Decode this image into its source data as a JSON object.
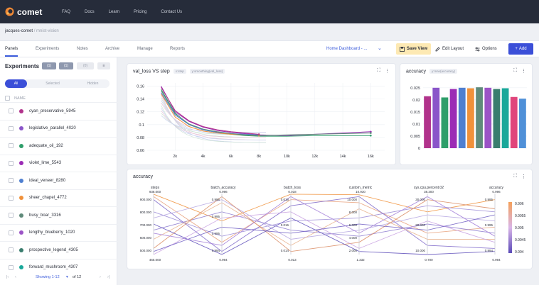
{
  "app": {
    "logo_text": "comet"
  },
  "topnav": {
    "links": [
      "FAQ",
      "Docs",
      "Learn",
      "Pricing",
      "Contact Us"
    ]
  },
  "breadcrumb": {
    "workspace": "jacques-comet",
    "separator": "/",
    "project": "mnist-vision"
  },
  "tabs": [
    "Panels",
    "Experiments",
    "Notes",
    "Archive",
    "Manage",
    "Reports"
  ],
  "toolbar": {
    "dashboard_select": "Home Dashboard - ...",
    "save_view": "Save View",
    "edit_layout": "Edit Layout",
    "options": "Options",
    "add": "Add"
  },
  "sidebar": {
    "title": "Experiments",
    "buttons": [
      "(1)",
      "(1)",
      "(0)",
      "≡"
    ],
    "filters": [
      "All",
      "Selected",
      "Hidden"
    ],
    "column_name": "NAME",
    "experiments": [
      {
        "name": "cyan_preservative_5945",
        "color": "#b1328b"
      },
      {
        "name": "legislative_parallel_4020",
        "color": "#8a55c9"
      },
      {
        "name": "adequate_oil_192",
        "color": "#2e9e6a"
      },
      {
        "name": "violet_lime_5543",
        "color": "#9b2bb5"
      },
      {
        "name": "ideal_veneer_8280",
        "color": "#4f7fd0"
      },
      {
        "name": "sheer_chapel_4772",
        "color": "#f0913a"
      },
      {
        "name": "busy_boar_3316",
        "color": "#5f8a7a"
      },
      {
        "name": "lengthy_blueberry_1020",
        "color": "#9b53c6"
      },
      {
        "name": "prospective_legend_4305",
        "color": "#3a7d6e"
      },
      {
        "name": "forward_mushroom_4307",
        "color": "#19a89a"
      }
    ],
    "pager": {
      "showing": "Showing 1-12",
      "of": "of 12"
    }
  },
  "panel_line": {
    "title": "val_loss VS step",
    "chips": [
      "x:step",
      "y:smoothing(val_loss)"
    ],
    "chart_data": {
      "type": "line",
      "ylim": [
        0.06,
        0.165
      ],
      "xlim": [
        0,
        17000
      ],
      "y_ticks": [
        "0.16",
        "0.14",
        "0.12",
        "0.1",
        "0.08",
        "0.06"
      ],
      "x_ticks": [
        "2k",
        "4k",
        "6k",
        "8k",
        "10k",
        "12k",
        "14k",
        "16k"
      ],
      "series": [
        {
          "color": "#9b2bb5",
          "x": [
            1000,
            2000,
            3000,
            4000,
            5000,
            6000,
            7000,
            8000,
            10000,
            12000,
            14000,
            16000
          ],
          "y": [
            0.16,
            0.12,
            0.105,
            0.096,
            0.091,
            0.088,
            0.086,
            0.084,
            0.083,
            0.085,
            0.087,
            0.089
          ]
        },
        {
          "color": "#2e9e6a",
          "x": [
            1000,
            2000,
            3000,
            4000,
            5000,
            6000,
            7000,
            8000,
            10000,
            12000,
            14000,
            16000
          ],
          "y": [
            0.155,
            0.118,
            0.1,
            0.092,
            0.088,
            0.085,
            0.083,
            0.082,
            0.082,
            0.083,
            0.083,
            0.083
          ]
        },
        {
          "color": "#4f7fd0",
          "x": [
            1000,
            2000,
            3000,
            4000,
            5000,
            6000,
            7000,
            8000
          ],
          "y": [
            0.15,
            0.115,
            0.1,
            0.092,
            0.088,
            0.086,
            0.085,
            0.084
          ]
        },
        {
          "color": "#b1328b",
          "x": [
            1000,
            2000,
            3000,
            4000,
            5000,
            6000,
            7000,
            8000
          ],
          "y": [
            0.158,
            0.122,
            0.106,
            0.097,
            0.092,
            0.089,
            0.087,
            0.085
          ]
        },
        {
          "color": "#f0913a",
          "x": [
            1000,
            2000,
            3000,
            4000,
            5000,
            6000,
            7000,
            8000
          ],
          "y": [
            0.148,
            0.112,
            0.097,
            0.09,
            0.087,
            0.085,
            0.084,
            0.083
          ]
        },
        {
          "color": "#5f8a7a",
          "x": [
            1000,
            2000,
            3000,
            4000,
            5000,
            6000,
            7000,
            8000,
            10000,
            12000,
            14000,
            16000
          ],
          "y": [
            0.153,
            0.117,
            0.101,
            0.093,
            0.089,
            0.086,
            0.084,
            0.083,
            0.084,
            0.085,
            0.086,
            0.087
          ]
        }
      ]
    }
  },
  "panel_bar": {
    "title": "accuracy",
    "chips": [
      "y:max(accuracy)"
    ],
    "chart_data": {
      "type": "bar",
      "ylim": [
        0,
        0.027
      ],
      "y_ticks": [
        "0.025",
        "0.02",
        "0.015",
        "0.01",
        "0.005",
        "0"
      ],
      "values": [
        0.0215,
        0.025,
        0.021,
        0.0245,
        0.025,
        0.0248,
        0.0252,
        0.025,
        0.0245,
        0.0248,
        0.0212,
        0.0205
      ],
      "colors": [
        "#b1328b",
        "#8a55c9",
        "#2e9e6a",
        "#9b2bb5",
        "#4f7fd0",
        "#f0913a",
        "#5f8a7a",
        "#9b53c6",
        "#3a7d6e",
        "#19a89a",
        "#e0457b",
        "#4f90d8"
      ]
    }
  },
  "panel_parallel": {
    "title": "accuracy",
    "chart_data": {
      "type": "parallel",
      "axes": [
        {
          "name": "steps",
          "top": "938.000",
          "bottom": "465.000",
          "ticks": [
            "900.000",
            "800.000",
            "700.000",
            "600.000",
            "500.000"
          ]
        },
        {
          "name": "batch_accuracy",
          "top": "0.996",
          "bottom": "0.994",
          "ticks": [
            "0.996",
            "0.995",
            "0.995",
            "0.994"
          ]
        },
        {
          "name": "batch_loss",
          "top": "0.018",
          "bottom": "0.013",
          "ticks": [
            "0.018",
            "0.016",
            "0.014"
          ]
        },
        {
          "name": "custom_metric",
          "top": "10.930",
          "bottom": "1.332",
          "ticks": [
            "10.000",
            "8.000",
            "6.000",
            "4.000",
            "2.000"
          ]
        },
        {
          "name": "sys.cpu.percent.02",
          "top": "38.300",
          "bottom": "0.700",
          "ticks": [
            "30.000",
            "20.000",
            "10.000"
          ]
        },
        {
          "name": "accuracy",
          "top": "0.996",
          "bottom": "0.994",
          "ticks": [
            "0.995",
            "0.995",
            "0.994"
          ]
        }
      ],
      "colorbar": {
        "labels": [
          "0.996",
          "0.9955",
          "0.995",
          "0.9945",
          "0.994"
        ]
      },
      "lines": [
        {
          "values": [
            0.99,
            0.55,
            0.99,
            0.98,
            0.7,
            0.9
          ],
          "color": "#f0913a"
        },
        {
          "values": [
            0.95,
            0.2,
            0.9,
            0.85,
            0.35,
            0.45
          ],
          "color": "#e8a07a"
        },
        {
          "values": [
            0.9,
            0.05,
            0.8,
            0.95,
            0.15,
            0.1
          ],
          "color": "#7a64c8"
        },
        {
          "values": [
            0.7,
            0.3,
            0.55,
            0.6,
            0.8,
            0.7
          ],
          "color": "#9a8ad6"
        },
        {
          "values": [
            0.6,
            0.9,
            0.25,
            0.4,
            0.65,
            0.55
          ],
          "color": "#b4a4e0"
        },
        {
          "values": [
            0.4,
            0.7,
            0.4,
            0.3,
            0.5,
            0.35
          ],
          "color": "#8d7bd0"
        },
        {
          "values": [
            0.25,
            0.85,
            0.15,
            0.75,
            0.25,
            0.25
          ],
          "color": "#e7b08a"
        },
        {
          "values": [
            0.1,
            0.95,
            0.05,
            0.2,
            0.9,
            0.75
          ],
          "color": "#d98a60"
        },
        {
          "values": [
            0.0,
            0.6,
            0.7,
            0.1,
            0.55,
            0.2
          ],
          "color": "#c8a0e0"
        },
        {
          "values": [
            0.05,
            0.45,
            0.35,
            0.5,
            0.4,
            0.65
          ],
          "color": "#6c5bc2"
        },
        {
          "values": [
            0.5,
            0.0,
            0.6,
            0.05,
            0.0,
            0.05
          ],
          "color": "#5a4ab8"
        },
        {
          "values": [
            0.35,
            0.15,
            0.95,
            0.35,
            0.95,
            0.3
          ],
          "color": "#a37fd8"
        }
      ]
    }
  }
}
